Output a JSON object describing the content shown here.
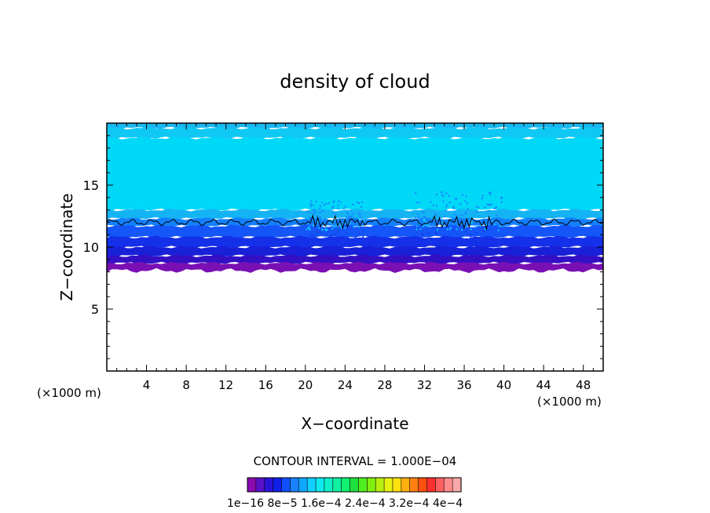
{
  "chart_data": {
    "type": "heatmap",
    "title": "density of cloud",
    "xlabel": "X−coordinate",
    "ylabel": "Z−coordinate",
    "x_unit_left": "(×1000 m)",
    "x_unit_right": "(×1000 m)",
    "xlim": [
      0,
      50
    ],
    "ylim": [
      0,
      20
    ],
    "xticks": [
      4,
      8,
      12,
      16,
      20,
      24,
      28,
      32,
      36,
      40,
      44,
      48
    ],
    "yticks": [
      5,
      10,
      15
    ],
    "contour_interval_text": "CONTOUR INTERVAL = 1.000E−04",
    "colorbar": {
      "colors": [
        "#8a0ab0",
        "#5a10c8",
        "#2a12d8",
        "#1020e8",
        "#1050ff",
        "#1a80ff",
        "#10a8ff",
        "#10d0ff",
        "#10e8f0",
        "#10f0c8",
        "#10f0a0",
        "#10f070",
        "#20e040",
        "#50f020",
        "#80f010",
        "#b8f010",
        "#e8f010",
        "#ffe010",
        "#ffb010",
        "#ff8010",
        "#ff5010",
        "#ff3030",
        "#ff6060",
        "#ff8c8c",
        "#f8a8a8"
      ],
      "labels": [
        "1e−16",
        "8e−5",
        "1.6e−4",
        "2.4e−4",
        "3.2e−4",
        "4e−4"
      ],
      "label_text": "1e−16  8e−5  1.6e−4 2.4e−4 3.2e−4  4e−4"
    },
    "layers": [
      {
        "z0": 19.6,
        "z1": 20.0,
        "color": "#18b8f0"
      },
      {
        "z0": 18.8,
        "z1": 19.6,
        "color": "#10c8f4"
      },
      {
        "z0": 13.0,
        "z1": 18.8,
        "color": "#00d8f8"
      },
      {
        "z0": 12.3,
        "z1": 13.0,
        "color": "#14b4f4"
      },
      {
        "z0": 11.7,
        "z1": 12.3,
        "color": "#1280ff"
      },
      {
        "z0": 10.8,
        "z1": 11.7,
        "color": "#1456f8"
      },
      {
        "z0": 10.0,
        "z1": 10.8,
        "color": "#1430e8"
      },
      {
        "z0": 9.3,
        "z1": 10.0,
        "color": "#1820d8"
      },
      {
        "z0": 8.7,
        "z1": 9.3,
        "color": "#3410c4"
      },
      {
        "z0": 8.1,
        "z1": 8.7,
        "color": "#7a10b4"
      }
    ],
    "contour_line_z": 12.0
  }
}
